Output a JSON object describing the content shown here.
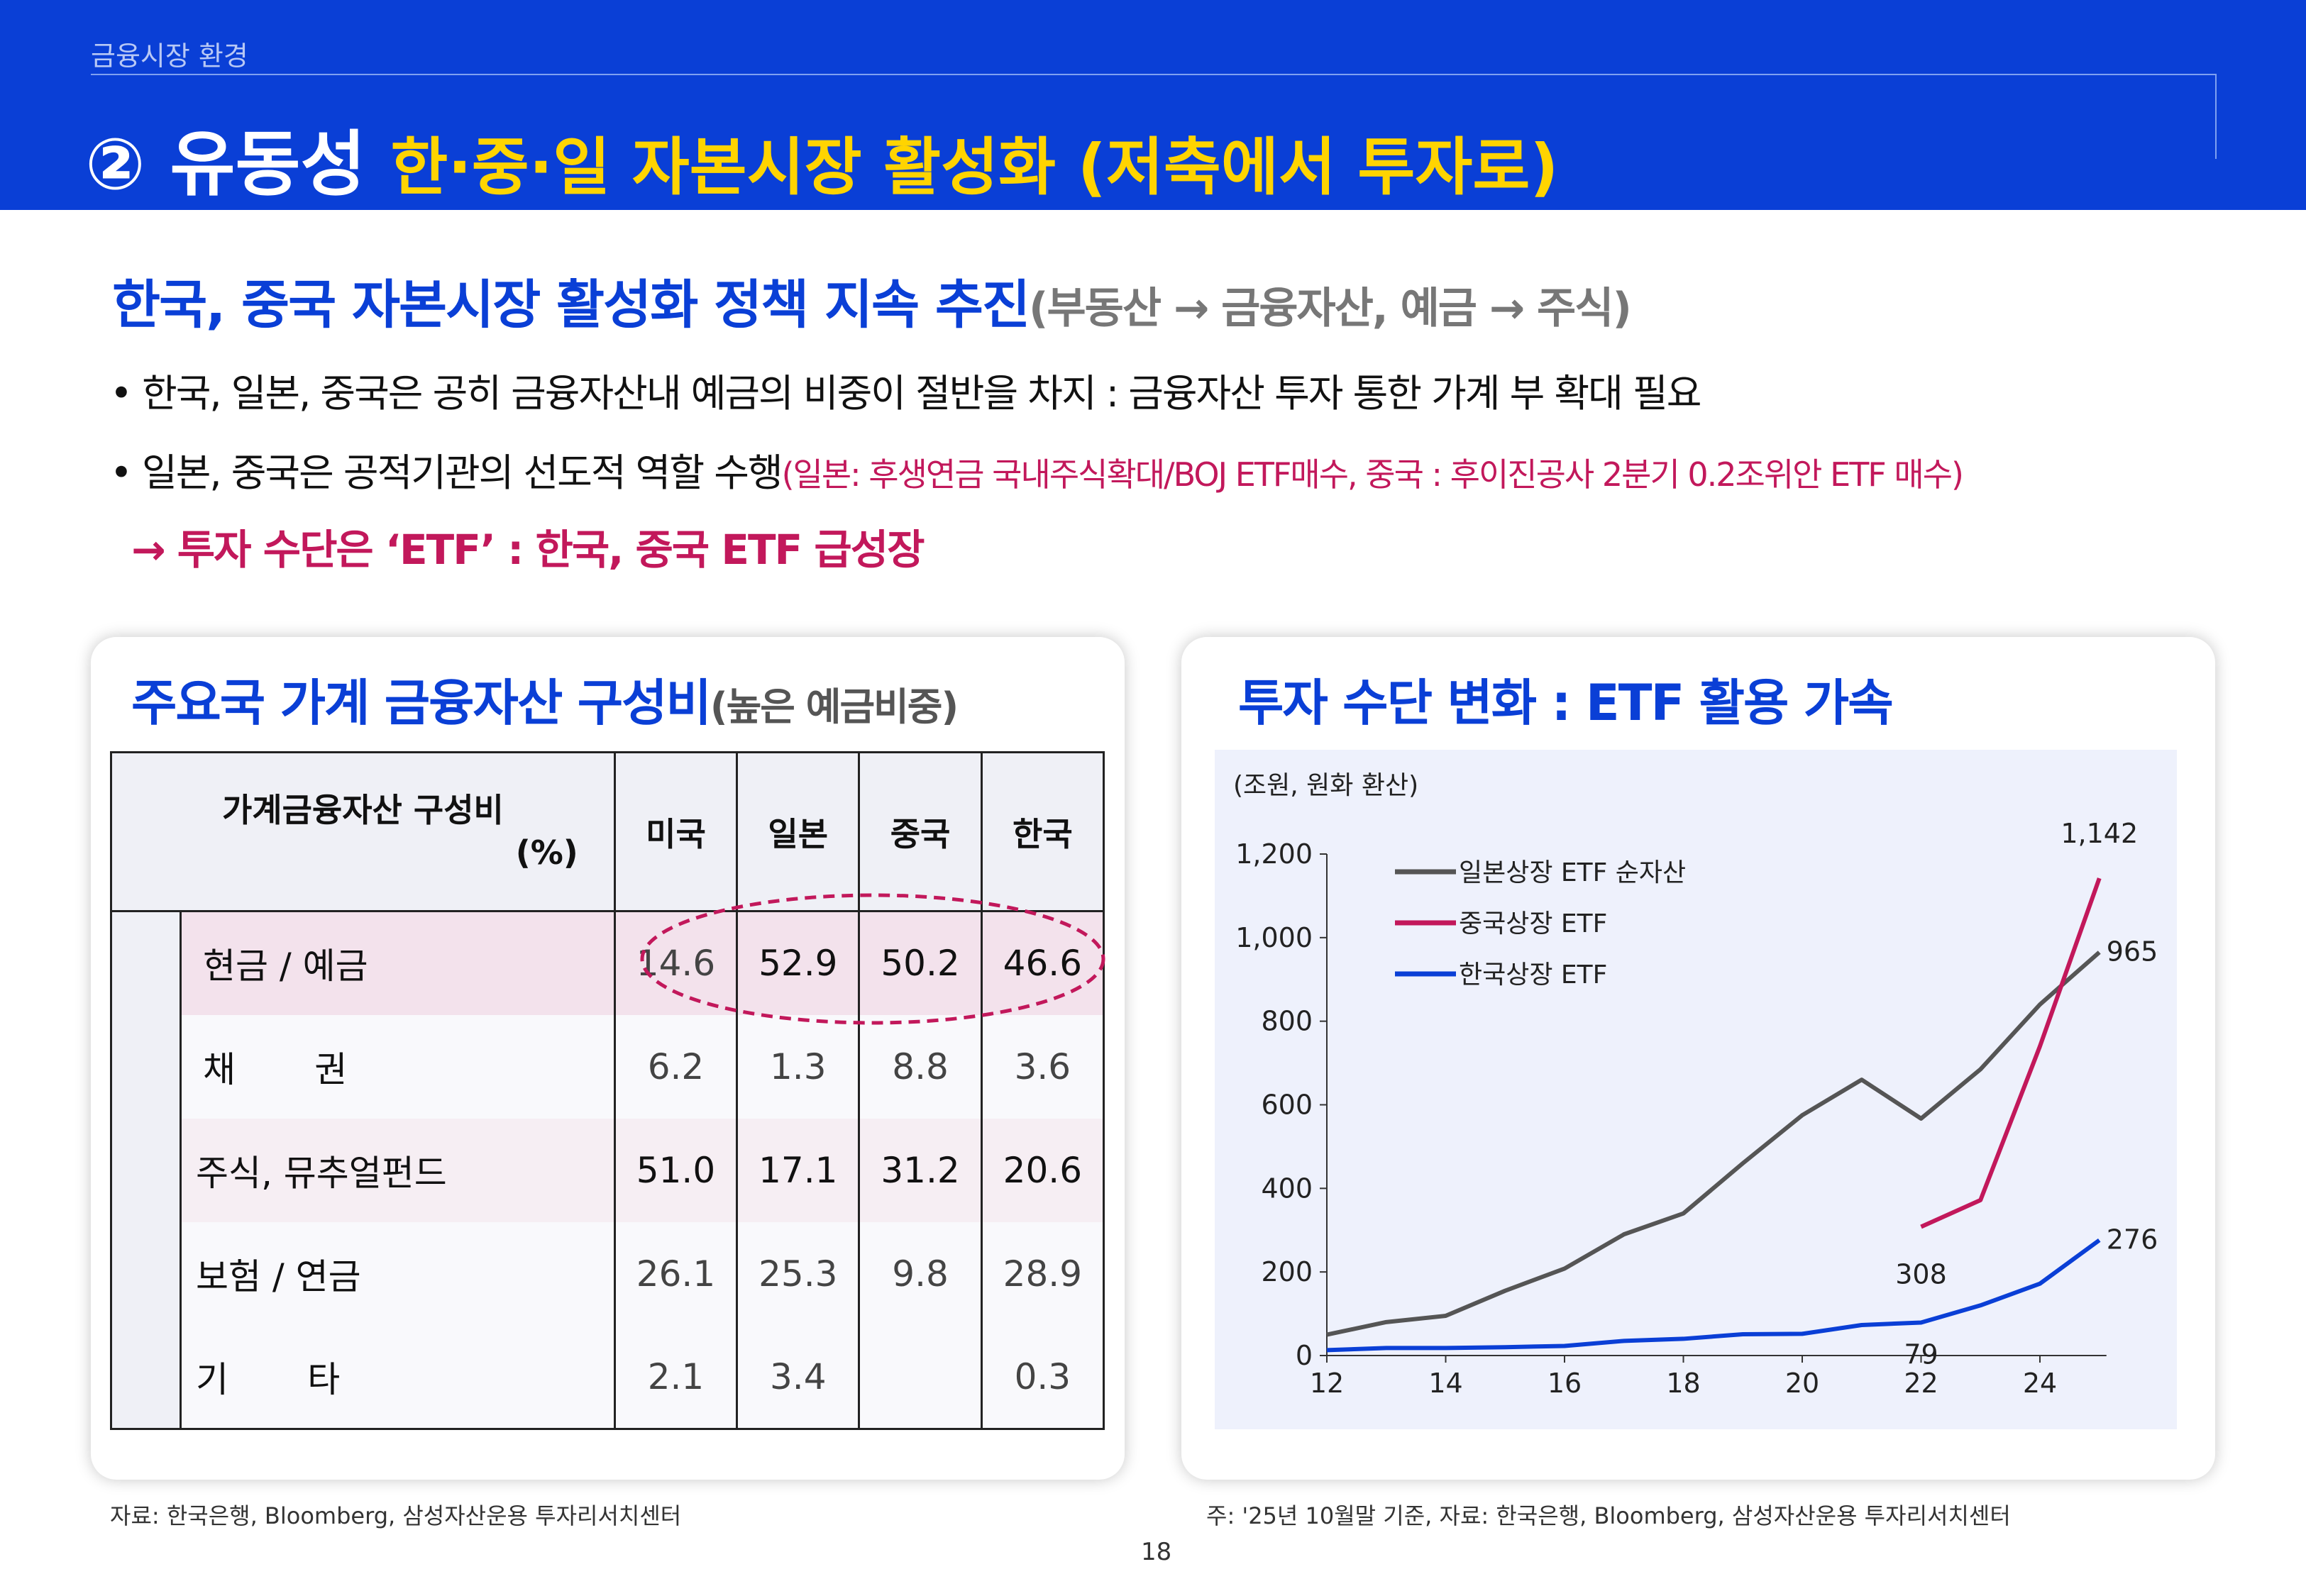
{
  "header": {
    "section": "금융시장 환경",
    "number": "②",
    "title_main": "유동성",
    "title_sub": "한·중·일 자본시장 활성화 (저축에서 투자로)"
  },
  "headline": {
    "main": "한국, 중국 자본시장 활성화 정책 지속 추진",
    "paren": "(부동산 → 금융자산, 예금 → 주식)"
  },
  "bullets": [
    {
      "text": "• 한국, 일본, 중국은 공히 금융자산내 예금의 비중이 절반을 차지 : 금융자산 투자 통한 가계 부 확대 필요",
      "note": ""
    },
    {
      "text": "• 일본, 중국은 공적기관의 선도적 역할 수행",
      "note": "(일본: 후생연금 국내주식확대/BOJ ETF매수, 중국 : 후이진공사 2분기 0.2조위안 ETF 매수)"
    }
  ],
  "conclusion": "→ 투자 수단은 ‘ETF’ : 한국, 중국 ETF 급성장",
  "left_panel": {
    "title": "주요국 가계 금융자산 구성비",
    "title_note": "(높은 예금비중)",
    "table": {
      "corner_line1": "가계금융자산 구성비",
      "corner_line2": "(%)",
      "columns": [
        "미국",
        "일본",
        "중국",
        "한국"
      ],
      "rows": [
        {
          "label": "현금 / 예금",
          "values": [
            "14.6",
            "52.9",
            "50.2",
            "46.6"
          ]
        },
        {
          "label": "채       권",
          "values": [
            "6.2",
            "1.3",
            "8.8",
            "3.6"
          ]
        },
        {
          "label": "주식, 뮤추얼펀드",
          "values": [
            "51.0",
            "17.1",
            "31.2",
            "20.6"
          ]
        },
        {
          "label": "보험 / 연금",
          "values": [
            "26.1",
            "25.3",
            "9.8",
            "28.9"
          ]
        },
        {
          "label": "기       타",
          "values": [
            "2.1",
            "3.4",
            "",
            "0.3"
          ]
        }
      ]
    },
    "source": "자료: 한국은행, Bloomberg, 삼성자산운용 투자리서치센터"
  },
  "right_panel": {
    "title": "투자 수단 변화 : ETF 활용 가속",
    "source": "주: '25년 10월말 기준, 자료: 한국은행, Bloomberg, 삼성자산운용 투자리서치센터"
  },
  "chart_data": {
    "type": "line",
    "unit_label": "(조원, 원화 환산)",
    "xlim": [
      12,
      25
    ],
    "ylim": [
      0,
      1200
    ],
    "x_ticks": [
      "12",
      "14",
      "16",
      "18",
      "20",
      "22",
      "24"
    ],
    "y_ticks": [
      "0",
      "200",
      "400",
      "600",
      "800",
      "1,000",
      "1,200"
    ],
    "legend_position": "top-left",
    "grid": false,
    "series": [
      {
        "name": "일본상장 ETF 순자산",
        "color": "#555555",
        "x": [
          12,
          13,
          14,
          15,
          16,
          17,
          18,
          19,
          20,
          21,
          22,
          23,
          24,
          25
        ],
        "values": [
          50,
          80,
          95,
          155,
          208,
          290,
          340,
          460,
          575,
          660,
          567,
          685,
          840,
          965
        ]
      },
      {
        "name": "중국상장 ETF",
        "color": "#c2185b",
        "x": [
          22,
          23,
          24,
          25
        ],
        "values": [
          308,
          372,
          740,
          1142
        ]
      },
      {
        "name": "한국상장 ETF",
        "color": "#0a3fd6",
        "x": [
          12,
          13,
          14,
          15,
          16,
          17,
          18,
          19,
          20,
          21,
          22,
          23,
          24,
          25
        ],
        "values": [
          13,
          18,
          18,
          20,
          23,
          35,
          40,
          51,
          52,
          73,
          79,
          120,
          172,
          276
        ]
      }
    ],
    "annotations": [
      "1,142",
      "965",
      "308",
      "276",
      "79"
    ]
  },
  "page_number": "18"
}
